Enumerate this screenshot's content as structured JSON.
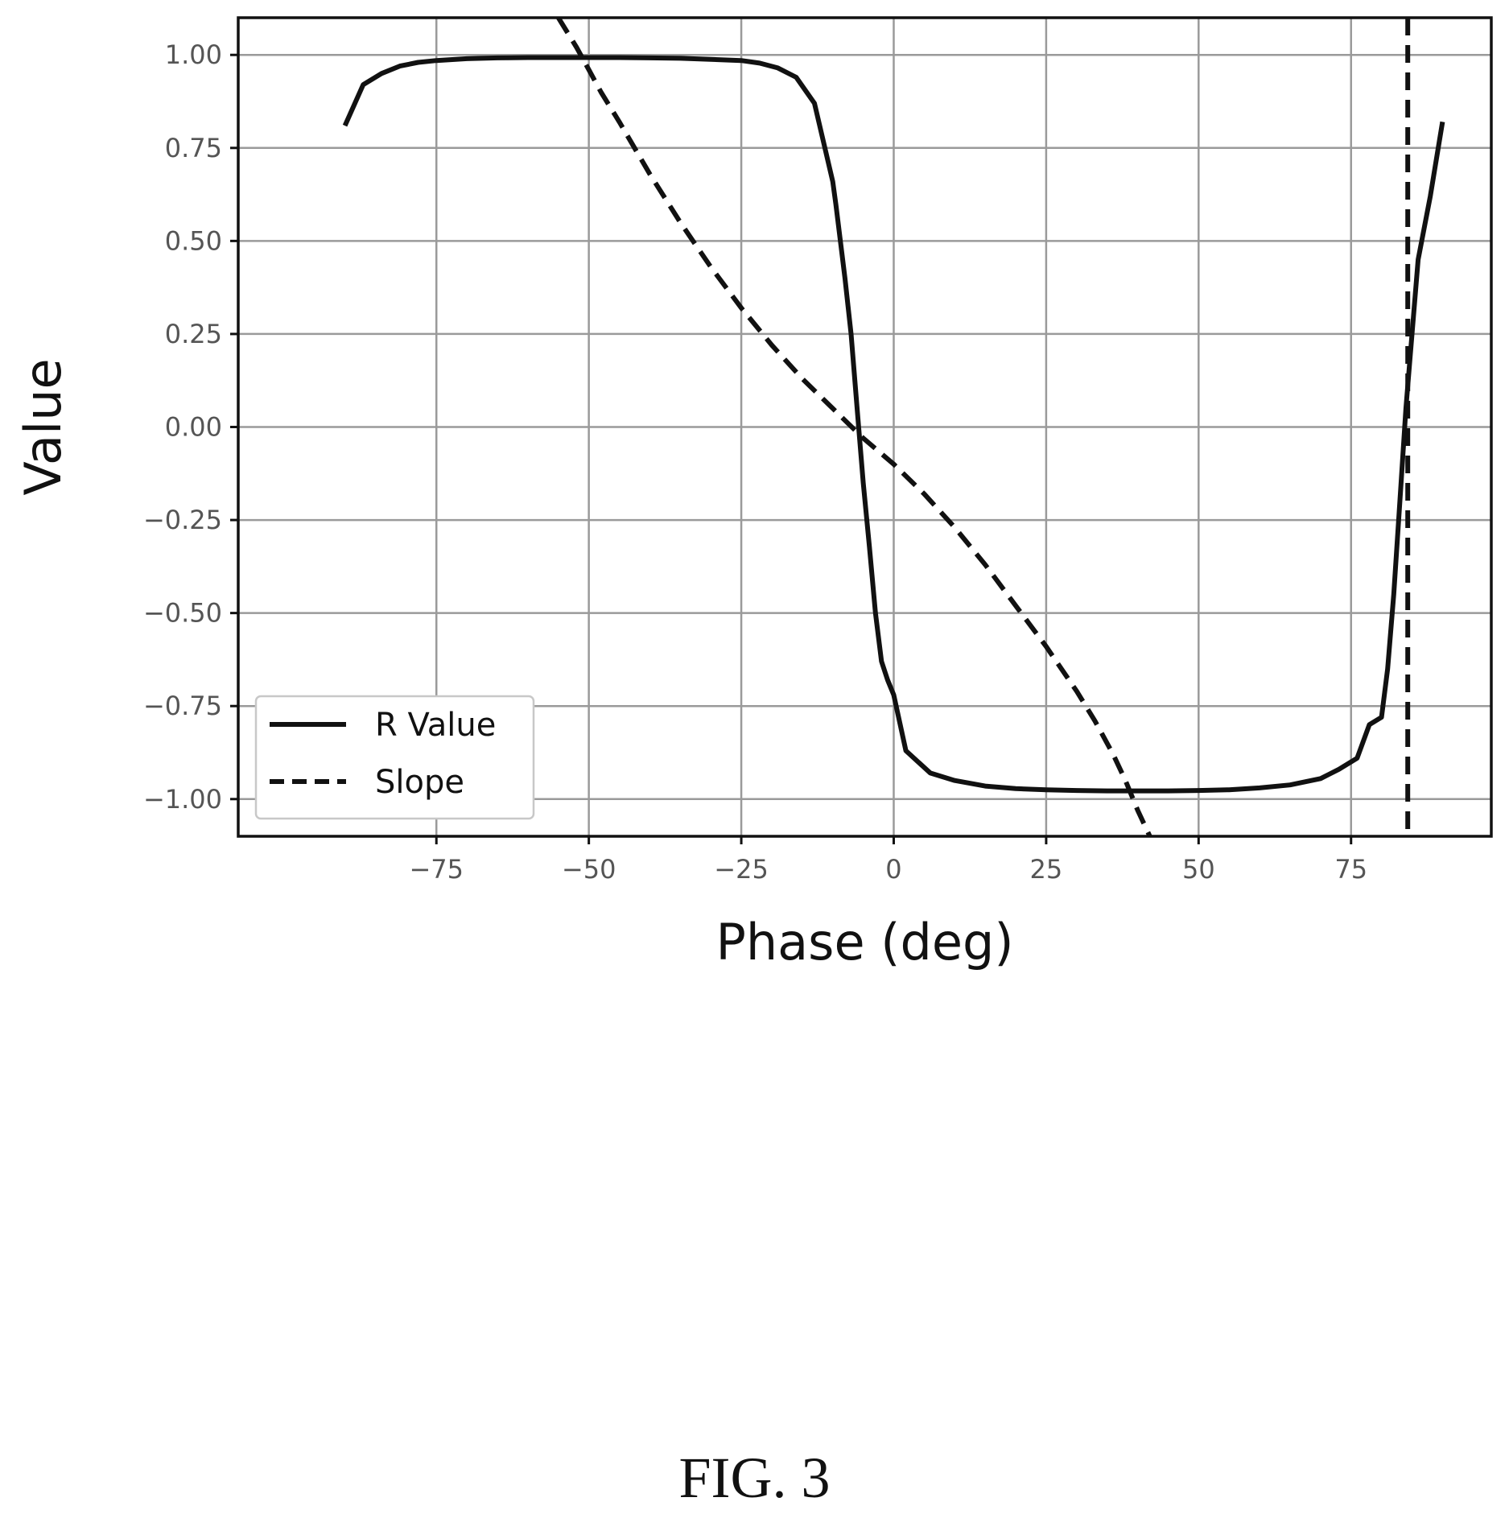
{
  "figure_caption": "FIG. 3",
  "chart_data": {
    "type": "line",
    "title": "",
    "xlabel": "Phase (deg)",
    "ylabel": "Value",
    "xlim": [
      -107.5,
      98
    ],
    "ylim": [
      -1.1,
      1.1
    ],
    "xticks": [
      -75,
      -50,
      -25,
      0,
      25,
      50,
      75
    ],
    "xtick_labels": [
      "−75",
      "−50",
      "−25",
      "0",
      "25",
      "50",
      "75"
    ],
    "yticks": [
      1.0,
      0.75,
      0.5,
      0.25,
      0.0,
      -0.25,
      -0.5,
      -0.75,
      -1.0
    ],
    "ytick_labels": [
      "1.00",
      "0.75",
      "0.50",
      "0.25",
      "0.00",
      "−0.25",
      "−0.50",
      "−0.75",
      "−1.00"
    ],
    "grid": true,
    "legend_position": "lower-left",
    "series": [
      {
        "name": "R Value",
        "style": "solid",
        "color": "#111111",
        "x": [
          -90,
          -87,
          -84,
          -81,
          -78,
          -75,
          -70,
          -65,
          -60,
          -55,
          -50,
          -45,
          -40,
          -35,
          -30,
          -25,
          -22,
          -19,
          -16,
          -13,
          -10,
          -9.5,
          -8,
          -7,
          -6,
          -5,
          -4,
          -3,
          -2,
          -1,
          0,
          2,
          6,
          10,
          15,
          20,
          25,
          30,
          35,
          40,
          45,
          50,
          55,
          60,
          65,
          70,
          73,
          76,
          78,
          80,
          81,
          82,
          83,
          84,
          85,
          86,
          88,
          90
        ],
        "y": [
          0.81,
          0.92,
          0.95,
          0.97,
          0.98,
          0.985,
          0.99,
          0.992,
          0.993,
          0.993,
          0.993,
          0.993,
          0.992,
          0.991,
          0.988,
          0.985,
          0.978,
          0.965,
          0.94,
          0.87,
          0.66,
          0.6,
          0.4,
          0.25,
          0.05,
          -0.15,
          -0.32,
          -0.5,
          -0.63,
          -0.68,
          -0.72,
          -0.87,
          -0.93,
          -0.95,
          -0.965,
          -0.972,
          -0.975,
          -0.977,
          -0.978,
          -0.978,
          -0.978,
          -0.977,
          -0.975,
          -0.97,
          -0.962,
          -0.945,
          -0.92,
          -0.89,
          -0.8,
          -0.78,
          -0.65,
          -0.45,
          -0.2,
          0.05,
          0.25,
          0.45,
          0.62,
          0.82
        ]
      },
      {
        "name": "Slope",
        "style": "dashed",
        "color": "#111111",
        "x": [
          -55,
          -52,
          -50,
          -48,
          -45,
          -40,
          -35,
          -30,
          -25,
          -20,
          -15,
          -10,
          -5,
          0,
          5,
          10,
          15,
          20,
          25,
          30,
          33,
          36,
          38,
          40,
          42
        ],
        "y": [
          1.1,
          1.02,
          0.96,
          0.9,
          0.82,
          0.68,
          0.55,
          0.43,
          0.32,
          0.22,
          0.13,
          0.05,
          -0.03,
          -0.1,
          -0.18,
          -0.27,
          -0.37,
          -0.48,
          -0.59,
          -0.71,
          -0.79,
          -0.88,
          -0.95,
          -1.03,
          -1.1
        ],
        "segments": [
          {
            "x": [
              84.3,
              84.3
            ],
            "y": [
              1.1,
              -1.1
            ]
          }
        ]
      }
    ]
  }
}
